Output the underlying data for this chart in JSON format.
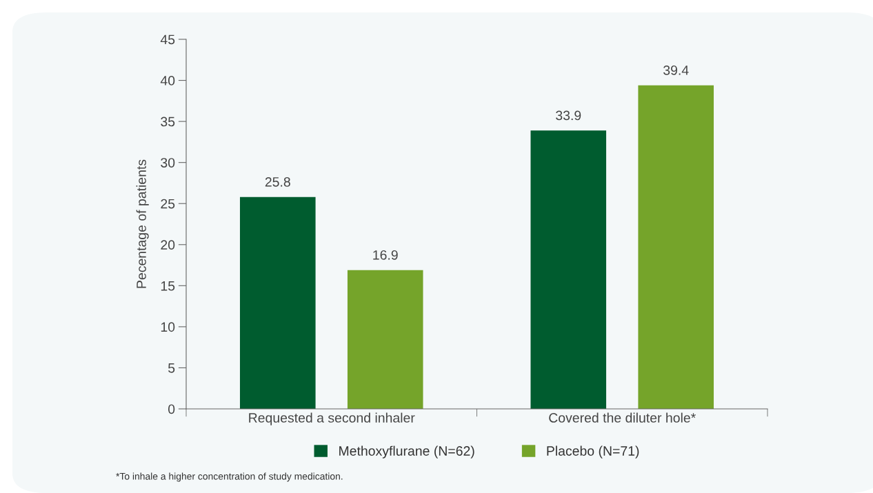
{
  "chart_data": {
    "type": "bar",
    "ylabel": "Pecentage of patients",
    "categories": [
      "Requested a second inhaler",
      "Covered the diluter hole*"
    ],
    "series": [
      {
        "name": "Methoxyflurane (N=62)",
        "color": "#005c2f",
        "values": [
          25.8,
          33.9
        ]
      },
      {
        "name": "Placebo (N=71)",
        "color": "#75a42a",
        "values": [
          16.9,
          39.4
        ]
      }
    ],
    "ylim": [
      0,
      45
    ],
    "yticks": [
      0,
      5,
      10,
      15,
      20,
      25,
      30,
      35,
      40,
      45
    ],
    "data_labels": true,
    "grid": false,
    "legend": "bottom",
    "annotations": [
      "*To inhale a higher concentration of study medication."
    ]
  }
}
